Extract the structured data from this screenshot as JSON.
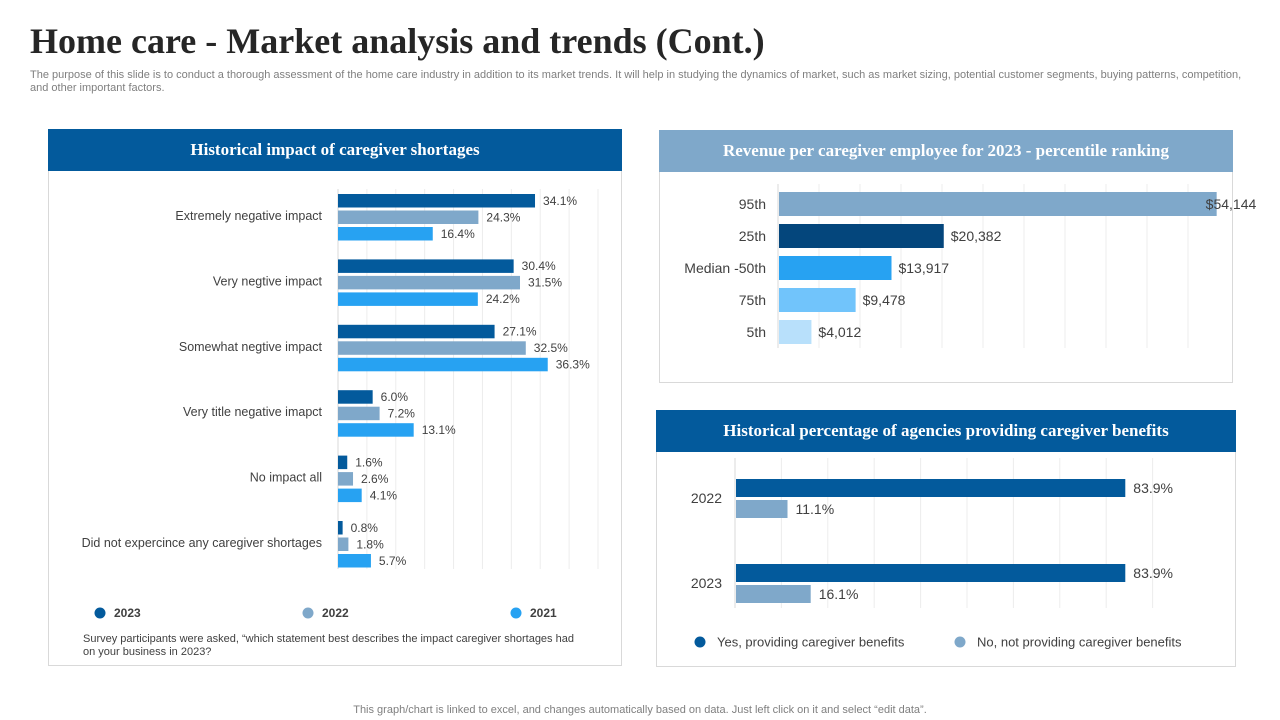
{
  "page": {
    "title": "Home care - Market analysis and trends (Cont.)",
    "subtitle": "The purpose of this slide is to conduct a thorough assessment of the home care industry in addition to its market trends. It will help in studying the dynamics of market, such as market sizing, potential customer segments, buying patterns, competition, and other important factors.",
    "footer": "This graph/chart is linked to excel,  and changes automatically based on data. Just left click on it and select “edit data”.",
    "survey_note": "Survey participants were asked, “which statement best describes the impact caregiver shortages had on your business in 2023?"
  },
  "colors": {
    "dark_blue": "#035a9c",
    "gray_blue": "#7fa8ca",
    "bright_blue": "#27a2f2",
    "navy": "#04467c",
    "sky": "#71c4fb",
    "pale": "#b8e0fb"
  },
  "chart_data": [
    {
      "id": "shortages",
      "type": "bar",
      "orientation": "horizontal",
      "title": "Historical impact of caregiver shortages",
      "categories": [
        "Extremely negative impact",
        "Very negtive impact",
        "Somewhat negtive impact",
        "Very title negative imapct",
        "No impact all",
        "Did not expercince any caregiver shortages"
      ],
      "series": [
        {
          "name": "2023",
          "values": [
            34.1,
            30.4,
            27.1,
            6.0,
            1.6,
            0.8
          ],
          "labels": [
            "34.1%",
            "30.4%",
            "27.1%",
            "6.0%",
            "1.6%",
            "0.8%"
          ]
        },
        {
          "name": "2022",
          "values": [
            24.3,
            31.5,
            32.5,
            7.2,
            2.6,
            1.8
          ],
          "labels": [
            "24.3%",
            "31.5%",
            "32.5%",
            "7.2%",
            "2.6%",
            "1.8%"
          ]
        },
        {
          "name": "2021",
          "values": [
            16.4,
            24.2,
            36.3,
            13.1,
            4.1,
            5.7
          ],
          "labels": [
            "16.4%",
            "24.2%",
            "36.3%",
            "13.1%",
            "4.1%",
            "5.7%"
          ]
        }
      ],
      "xlim": [
        0,
        45
      ],
      "legend": "bottom",
      "grid": true
    },
    {
      "id": "revenue",
      "type": "bar",
      "orientation": "horizontal",
      "title": "Revenue per caregiver employee for 2023 - percentile ranking",
      "categories": [
        "95th",
        "25th",
        "Median -50th",
        "75th",
        "5th"
      ],
      "values": [
        54144,
        20382,
        13917,
        9478,
        4012
      ],
      "labels": [
        "$54,144",
        "$20,382",
        "$13,917",
        "$9,478",
        "$4,012"
      ],
      "xlim": [
        0,
        60000
      ],
      "grid": true
    },
    {
      "id": "benefits",
      "type": "bar",
      "orientation": "horizontal",
      "title": "Historical percentage of agencies providing caregiver benefits",
      "categories": [
        "2022",
        "2023"
      ],
      "series": [
        {
          "name": "Yes, providing  caregiver benefits",
          "values": [
            83.9,
            83.9
          ],
          "labels": [
            "83.9%",
            "83.9%"
          ]
        },
        {
          "name": "No, not providing  caregiver benefits",
          "values": [
            11.1,
            16.1
          ],
          "labels": [
            "11.1%",
            "16.1%"
          ]
        }
      ],
      "xlim": [
        0,
        100
      ],
      "legend": "bottom",
      "grid": true
    }
  ]
}
